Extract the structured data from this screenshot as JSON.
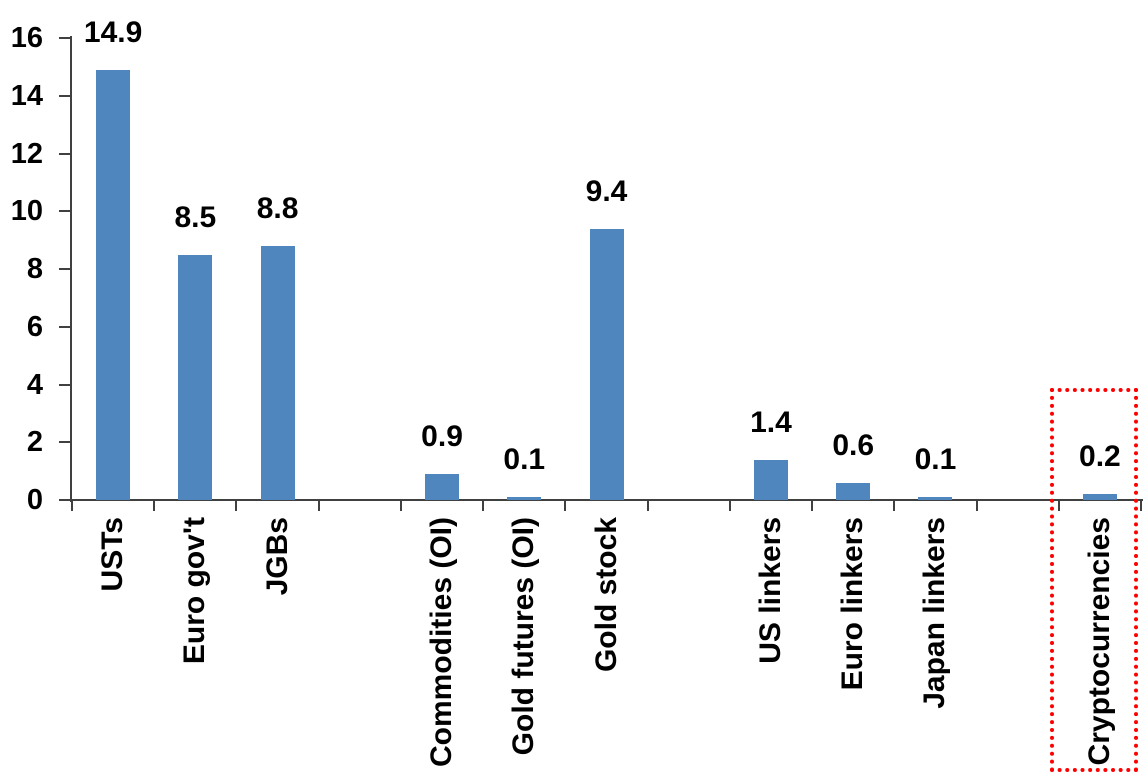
{
  "chart_data": {
    "type": "bar",
    "title": "",
    "xlabel": "",
    "ylabel": "",
    "categories": [
      "USTs",
      "Euro gov't",
      "JGBs",
      "",
      "Commodities (OI)",
      "Gold futures (OI)",
      "Gold stock",
      "",
      "US linkers",
      "Euro linkers",
      "Japan linkers",
      "",
      "Cryptocurrencies"
    ],
    "values": [
      14.9,
      8.5,
      8.8,
      null,
      0.9,
      0.1,
      9.4,
      null,
      1.4,
      0.6,
      0.1,
      null,
      0.2
    ],
    "value_labels": [
      "14.9",
      "8.5",
      "8.8",
      null,
      "0.9",
      "0.1",
      "9.4",
      null,
      "1.4",
      "0.6",
      "0.1",
      null,
      "0.2"
    ],
    "yticks": [
      0,
      2,
      4,
      6,
      8,
      10,
      12,
      14,
      16
    ],
    "ytick_labels": [
      "0",
      "2",
      "4",
      "6",
      "8",
      "10",
      "12",
      "14",
      "16"
    ],
    "ylim": [
      0,
      16
    ],
    "grid": false,
    "legend": null,
    "bar_color": "#4E86BD",
    "axis_color": "#404040",
    "text_color": "#000000",
    "highlight": {
      "category": "Cryptocurrencies",
      "shape": "dotted-rectangle",
      "color": "#FF0000"
    }
  }
}
